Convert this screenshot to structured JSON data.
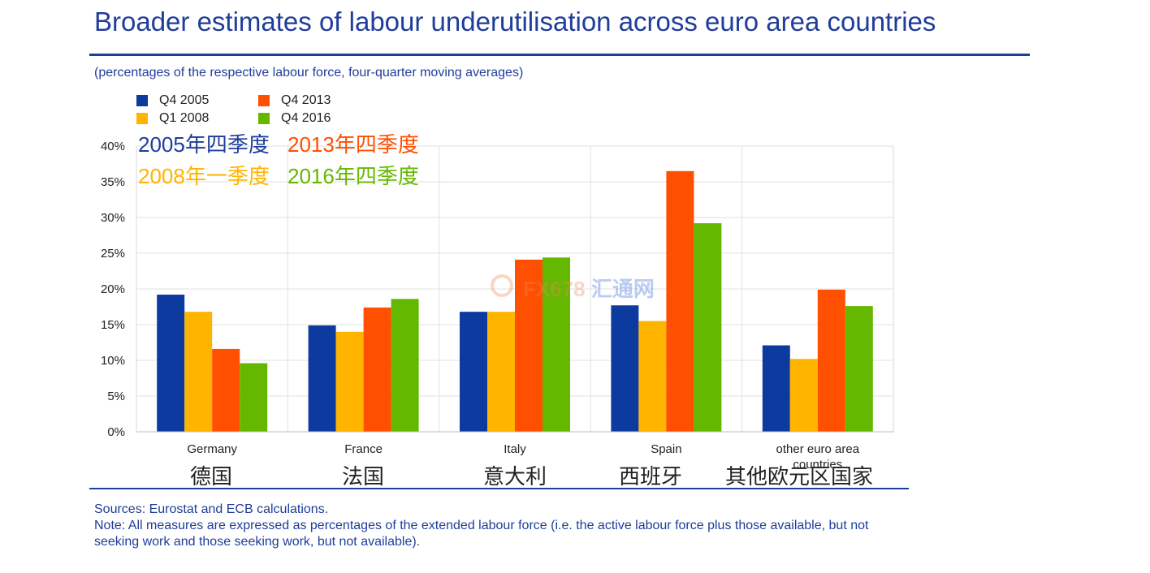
{
  "header": {
    "title": "Broader estimates of labour underutilisation across euro area countries",
    "subtitle": "(percentages of the respective labour force, four-quarter moving averages)"
  },
  "legend": {
    "items": [
      {
        "label": "Q4 2005",
        "color": "#0d3a9e"
      },
      {
        "label": "Q4 2013",
        "color": "#ff4f00"
      },
      {
        "label": "Q1 2008",
        "color": "#ffb400"
      },
      {
        "label": "Q4 2016",
        "color": "#65b800"
      }
    ],
    "chinese": [
      {
        "label": "2005年四季度",
        "color": "#1f3d9a"
      },
      {
        "label": "2013年四季度",
        "color": "#ff4f00"
      },
      {
        "label": "2008年一季度",
        "color": "#ffb400"
      },
      {
        "label": "2016年四季度",
        "color": "#65b800"
      }
    ]
  },
  "chart_data": {
    "type": "bar",
    "categories": [
      "Germany",
      "France",
      "Italy",
      "Spain",
      "other euro area countries"
    ],
    "categories_cn": [
      "德国",
      "法国",
      "意大利",
      "西班牙",
      "其他欧元区国家"
    ],
    "series": [
      {
        "name": "Q4 2005",
        "color": "#0d3a9e",
        "values": [
          19.2,
          14.9,
          16.8,
          17.7,
          12.1
        ]
      },
      {
        "name": "Q1 2008",
        "color": "#ffb400",
        "values": [
          16.8,
          14.0,
          16.8,
          15.5,
          10.2
        ]
      },
      {
        "name": "Q4 2013",
        "color": "#ff4f00",
        "values": [
          11.6,
          17.4,
          24.1,
          36.5,
          19.9
        ]
      },
      {
        "name": "Q4 2016",
        "color": "#65b800",
        "values": [
          9.6,
          18.6,
          24.4,
          29.2,
          17.6
        ]
      }
    ],
    "ylim": [
      0,
      40
    ],
    "yticks": [
      "0%",
      "5%",
      "10%",
      "15%",
      "20%",
      "25%",
      "30%",
      "35%",
      "40%"
    ],
    "grid": true,
    "legend_position": "top-left"
  },
  "footer": {
    "source": "Sources: Eurostat and ECB calculations.",
    "note": "Note: All measures are expressed as percentages of the extended labour force (i.e. the active labour force plus those available, but not seeking work and those seeking work, but not available)."
  },
  "watermark": {
    "text_a": "FX678",
    "text_b": "汇通网"
  }
}
